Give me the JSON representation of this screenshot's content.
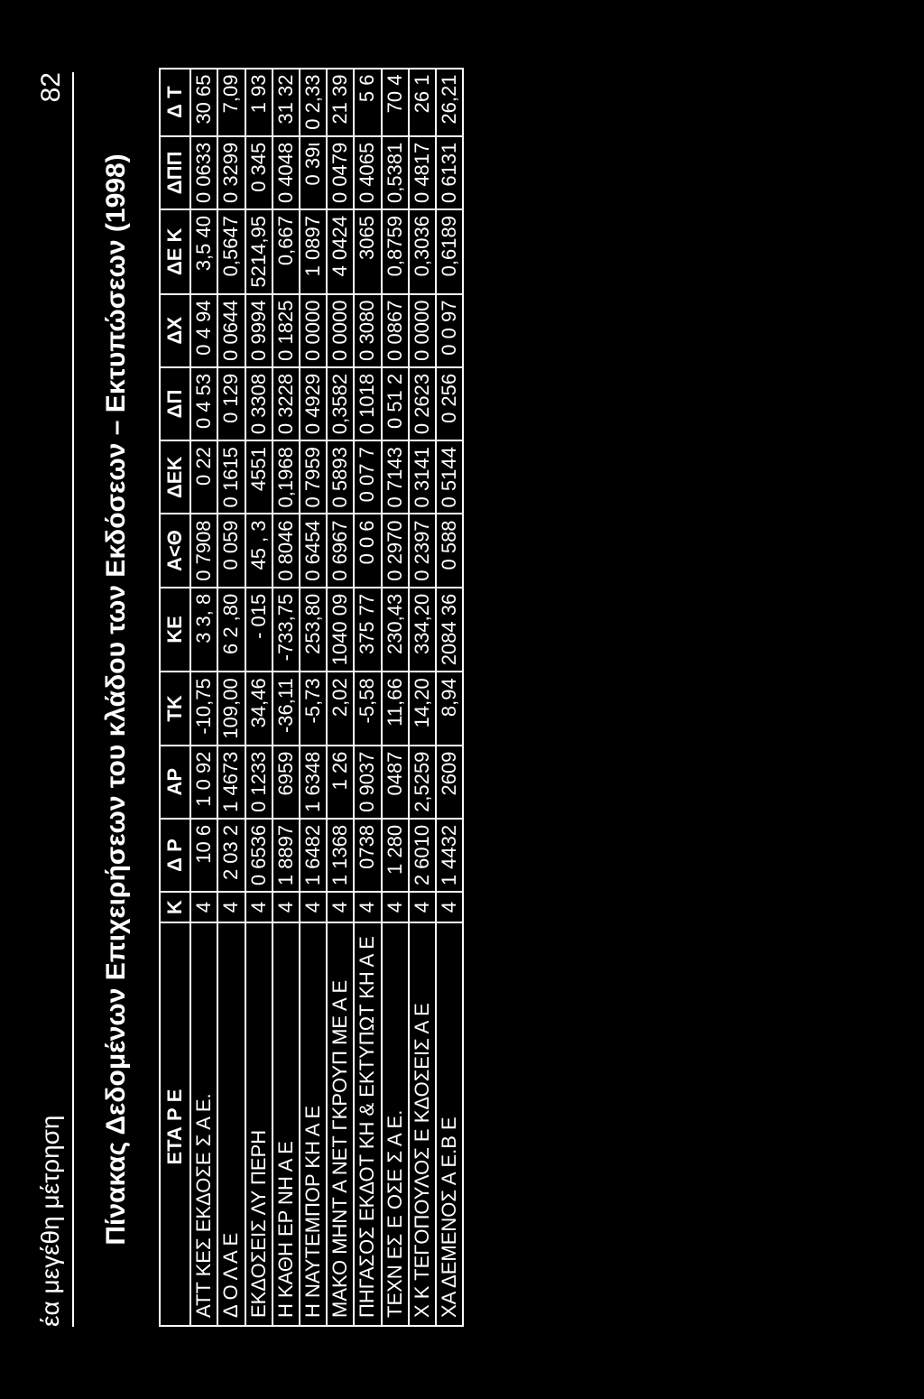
{
  "page": {
    "header_left": "έα μεγέθη μέτρηση",
    "page_number": "82",
    "title": "Πίνακας Δεδομένων Επιχειρήσεων του κλάδου των Εκδόσεων – Εκτυπώσεων (1998)"
  },
  "table": {
    "columns": [
      "ΕΤΑ Ρ Ε",
      "Κ",
      "Δ Ρ",
      "ΑΡ",
      "ΤΚ",
      "ΚΕ",
      "Α<Θ",
      "ΔΕΚ",
      "ΔΠ",
      "ΔΧ",
      "ΔΕ Κ",
      "ΔΠΠ",
      "Δ Τ"
    ],
    "col_align": [
      "company",
      "center",
      "num",
      "num",
      "num",
      "num",
      "num",
      "num",
      "num",
      "num",
      "num",
      "num",
      "num"
    ],
    "rows": [
      [
        "ΑΤΤ ΚΕΣ ΕΚΔΟΣΕ Σ Α Ε.",
        "4",
        "10 6",
        "1 0 92",
        "-10,75",
        "3 3, 8",
        "0 7908",
        "0   22",
        "0 4 53",
        "0 4 94",
        "3,5 40",
        "0 0633",
        "30 65"
      ],
      [
        "Δ Ο Λ  Α Ε",
        "4",
        "2 03 2",
        "1 4673",
        "109,00",
        "6 2 ,80",
        "0 059",
        "0 1615",
        "0 129",
        "0 0644",
        "0,5647",
        "0 3299",
        "7,09"
      ],
      [
        "ΕΚΔΟΣΕΙΣ ΛΥ  ΠΕΡΗ",
        "4",
        "0 6536",
        "0 1233",
        "34,46",
        "-  015",
        "45 , 3",
        "4551",
        "0 3308",
        "0 9994",
        "5214,95",
        "0 345",
        "1   93"
      ],
      [
        "Η ΚΑΘΗ  ΕΡ ΝΗ Α Ε",
        "4",
        "1 8897",
        "6959",
        "-36,11",
        "-733,75",
        "0 8046",
        "0,1968",
        "0 3228",
        "0 1825",
        "0,667",
        "0 4048",
        "31 32"
      ],
      [
        "Η ΝΑΥΤΕΜΠΟΡ ΚΗ Α Ε",
        "4",
        "1 6482",
        "1 6348",
        "-5,73",
        "253,80",
        "0 6454",
        "0 7959",
        "0 4929",
        "0 0000",
        "1 0897",
        "0 39ι",
        "0 2,33"
      ],
      [
        "ΜΑΚΟ ΜΗΝΤ Α ΝΕΤ ΓΚΡΟΥΠ  ΜΕ Α Ε",
        "4",
        "1 1368",
        "1   26",
        "2,02",
        "1040 09",
        "0 6967",
        "0 5893",
        "0,3582",
        "0 0000",
        "4 0424",
        "0 0479",
        "21 39"
      ],
      [
        "ΠΗΓΑΣΟΣ ΕΚΔΟΤ ΚΗ & ΕΚΤΥΠΩΤ ΚΗ Α Ε",
        "4",
        "0738",
        "0 9037",
        "-5,58",
        "375 77",
        "0 0 6",
        "0 07 7",
        "0 1018",
        "0 3080",
        "3065",
        "0 4065",
        "5 6"
      ],
      [
        "ΤΕΧΝ  ΕΣ Ε   ΟΣΕ Σ Α Ε.",
        "4",
        "1 280",
        "0487",
        "11,66",
        "230,43",
        "0 2970",
        "0 7143",
        "0 51 2",
        "0 0867",
        "0,8759",
        "0,5381",
        "70 4"
      ],
      [
        "Χ Κ  ΤΕΓΟΠΟΥΛΟΣ Ε ΚΔΟΣΕΙΣ Α Ε",
        "4",
        "2 6010",
        "2,5259",
        "14,20",
        "334,20",
        "0 2397",
        "0 3141",
        "0 2623",
        "0 0000",
        "0,3036",
        "0 4817",
        "26 1"
      ],
      [
        "ΧΑ ΔΕΜΕΝΟΣ Α Ε.Β Ε",
        "4",
        "1 4432",
        "2609",
        "8,94",
        "2084 36",
        "0  588",
        "0 5144",
        "0 256",
        "0 0 97",
        "0,6189",
        "0 6131",
        "26,21"
      ]
    ]
  },
  "style": {
    "background": "#000000",
    "text": "#ffffff",
    "border": "#ffffff",
    "header_fontsize": 28,
    "title_fontsize": 30,
    "cell_fontsize": 22
  }
}
